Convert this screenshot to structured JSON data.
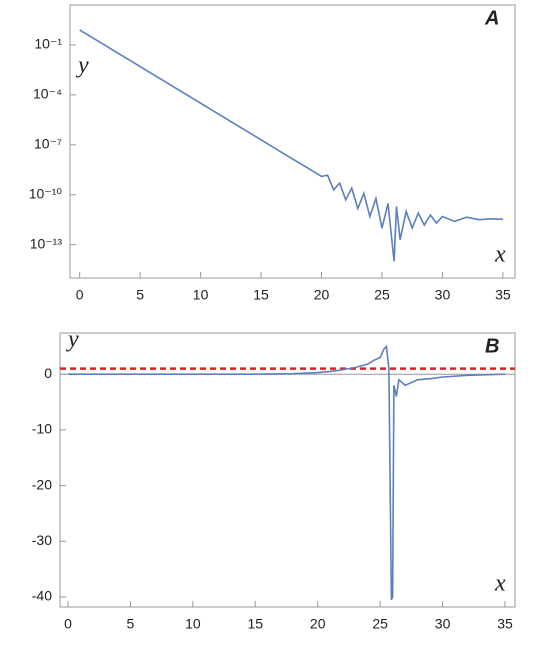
{
  "chart_data": [
    {
      "type": "line",
      "panel_label": "A",
      "x_label": "x",
      "y_label": "y",
      "log_scale": true,
      "x": [
        0,
        1,
        2,
        3,
        4,
        5,
        6,
        7,
        8,
        9,
        10,
        11,
        12,
        13,
        14,
        15,
        16,
        17,
        18,
        19,
        20,
        20.5,
        21,
        21.5,
        22,
        22.5,
        23,
        23.5,
        24,
        24.5,
        25,
        25.5,
        26,
        26.2,
        26.5,
        27,
        27.5,
        28,
        28.5,
        29,
        29.5,
        30,
        31,
        32,
        33,
        34,
        35
      ],
      "series": [
        {
          "color": "#5b7fbf",
          "values": [
            0.794,
            0.288,
            0.105,
            0.038,
            0.0138,
            0.005,
            0.00182,
            0.00066,
            0.00024,
            8.7e-05,
            3.16e-05,
            1.15e-05,
            4.2e-06,
            1.5e-06,
            5.5e-07,
            2e-07,
            7.2e-08,
            2.6e-08,
            9.5e-09,
            3.5e-09,
            1.26e-09,
            1.5e-09,
            2e-10,
            5e-10,
            5e-11,
            2.5e-10,
            1.5e-11,
            1.2e-10,
            5e-12,
            6e-11,
            1e-12,
            3e-11,
            1e-14,
            2e-11,
            2e-13,
            1e-11,
            1e-12,
            8e-12,
            1.5e-12,
            6e-12,
            2e-12,
            5e-12,
            2.5e-12,
            4.5e-12,
            3.2e-12,
            3.6e-12,
            3.4e-12
          ]
        }
      ],
      "xlim": [
        -0.8,
        36
      ],
      "xticks": [
        0,
        5,
        10,
        15,
        20,
        25,
        30,
        35
      ],
      "ylim": [
        1e-15,
        25
      ],
      "yticks": [
        {
          "value": 0.1,
          "label": "10⁻¹"
        },
        {
          "value": 0.0001,
          "label": "10⁻⁴"
        },
        {
          "value": 1e-07,
          "label": "10⁻⁷"
        },
        {
          "value": 1e-10,
          "label": "10⁻¹⁰"
        },
        {
          "value": 1e-13,
          "label": "10⁻¹³"
        }
      ]
    },
    {
      "type": "line",
      "panel_label": "B",
      "x_label": "x",
      "y_label": "y",
      "log_scale": false,
      "x": [
        0,
        5,
        10,
        15,
        18,
        20,
        21,
        22,
        23,
        24,
        24.5,
        25,
        25.3,
        25.5,
        25.7,
        25.9,
        26,
        26.1,
        26.3,
        26.5,
        27,
        28,
        29,
        30,
        32,
        35
      ],
      "series": [
        {
          "color": "#5b7fbf",
          "values": [
            0,
            0,
            0,
            0,
            0.1,
            0.3,
            0.5,
            0.8,
            1.2,
            1.8,
            2.5,
            3,
            4.5,
            5,
            1,
            -40.5,
            -40,
            -2,
            -4,
            -1,
            -2,
            -1,
            -0.8,
            -0.5,
            -0.2,
            0
          ]
        }
      ],
      "reference_line": {
        "value": 1,
        "color": "#e02020"
      },
      "xlim": [
        -0.64,
        35.8
      ],
      "xticks": [
        0,
        5,
        10,
        15,
        20,
        25,
        30,
        35
      ],
      "ylim": [
        -41.8,
        7.4
      ],
      "yticks": [
        0,
        -10,
        -20,
        -30,
        -40
      ]
    }
  ]
}
